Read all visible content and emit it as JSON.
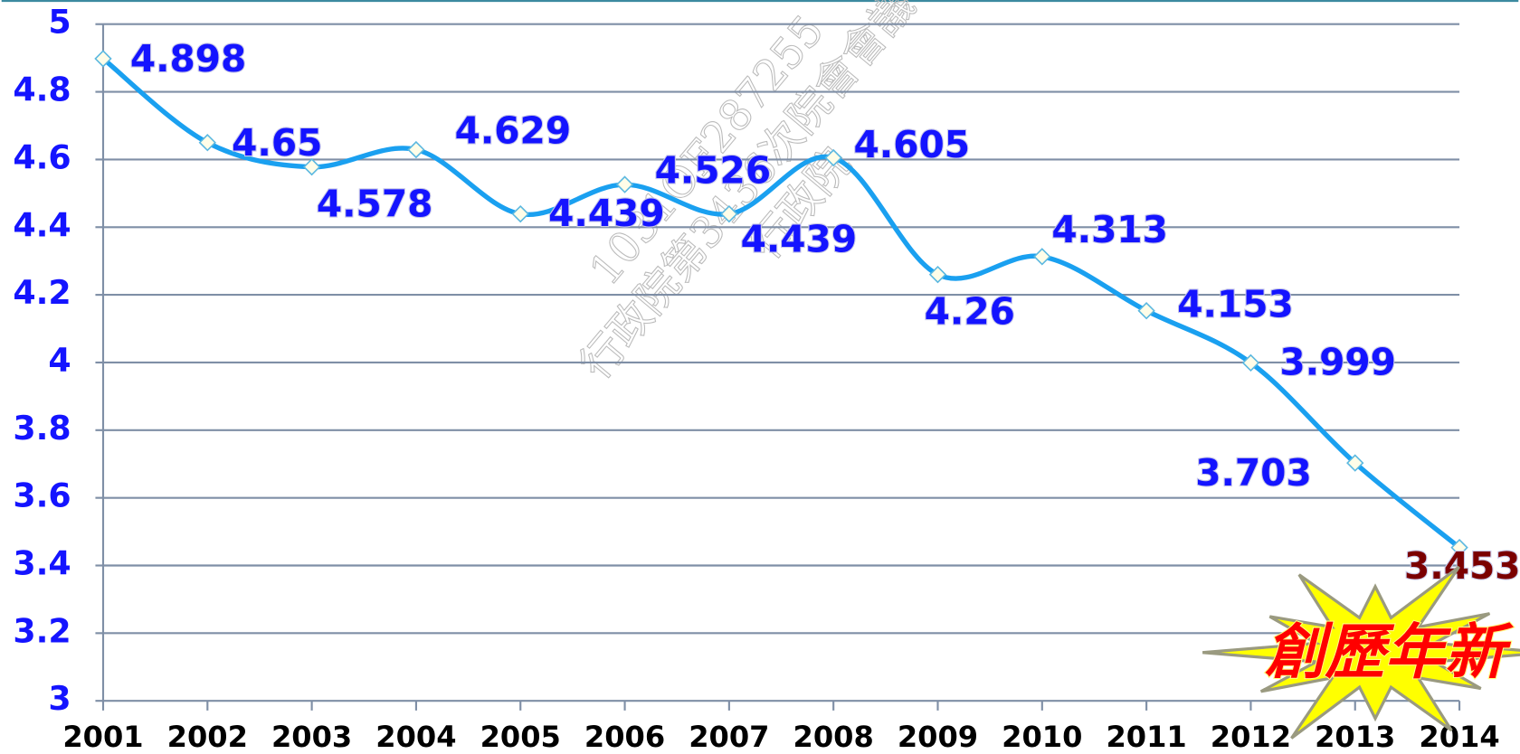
{
  "chart_data": {
    "type": "line",
    "categories": [
      "2001",
      "2002",
      "2003",
      "2004",
      "2005",
      "2006",
      "2007",
      "2008",
      "2009",
      "2010",
      "2011",
      "2012",
      "2013",
      "2014"
    ],
    "series": [
      {
        "color": "#1aa0f0",
        "values": [
          4.898,
          4.65,
          4.578,
          4.629,
          4.439,
          4.526,
          4.439,
          4.605,
          4.26,
          4.313,
          4.153,
          3.999,
          3.703,
          3.453
        ]
      }
    ],
    "ylim": [
      3,
      5
    ],
    "yticks": [
      3,
      3.2,
      3.4,
      3.6,
      3.8,
      4,
      4.2,
      4.4,
      4.6,
      4.8,
      5
    ],
    "grid": true,
    "label_color": "#1414ff",
    "highlight_label_color": "#7b0000",
    "annotation": "創歷年新",
    "watermark": [
      "1031OF287255",
      "行政院第3436次院會會議",
      "行政院"
    ]
  }
}
